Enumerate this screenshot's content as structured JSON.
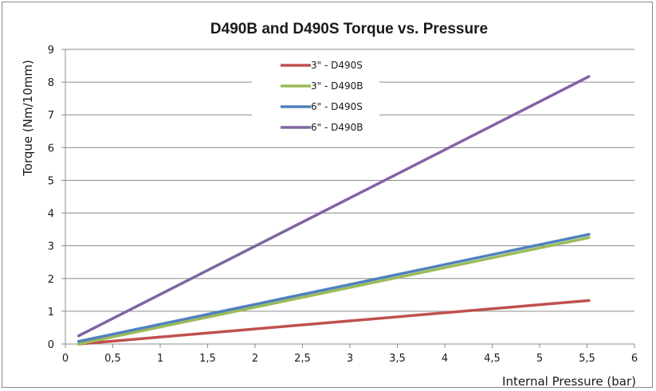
{
  "chart_data": {
    "type": "line",
    "title": "D490B and D490S Torque vs. Pressure",
    "xlabel": "Internal Pressure (bar)",
    "ylabel": "Torque (Nm/10mm)",
    "xlim": [
      0,
      6
    ],
    "ylim": [
      0,
      9
    ],
    "xticks": [
      "0",
      "0,5",
      "1",
      "1,5",
      "2",
      "2,5",
      "3",
      "3,5",
      "4",
      "4,5",
      "5",
      "5,5",
      "6"
    ],
    "yticks": [
      "0",
      "1",
      "2",
      "3",
      "4",
      "5",
      "6",
      "7",
      "8",
      "9"
    ],
    "grid": "horizontal",
    "legend_position": "top-center",
    "series": [
      {
        "name": "3\" - D490S",
        "color": "#c0504d",
        "x": [
          0.14,
          5.52
        ],
        "y": [
          0.0,
          1.33
        ]
      },
      {
        "name": "3\" - D490B",
        "color": "#9bbb59",
        "x": [
          0.14,
          5.52
        ],
        "y": [
          0.0,
          3.25
        ]
      },
      {
        "name": "6\" - D490S",
        "color": "#4f81bd",
        "x": [
          0.14,
          5.52
        ],
        "y": [
          0.08,
          3.35
        ]
      },
      {
        "name": "6\" - D490B",
        "color": "#8064a2",
        "x": [
          0.14,
          5.52
        ],
        "y": [
          0.25,
          8.17
        ]
      }
    ]
  }
}
